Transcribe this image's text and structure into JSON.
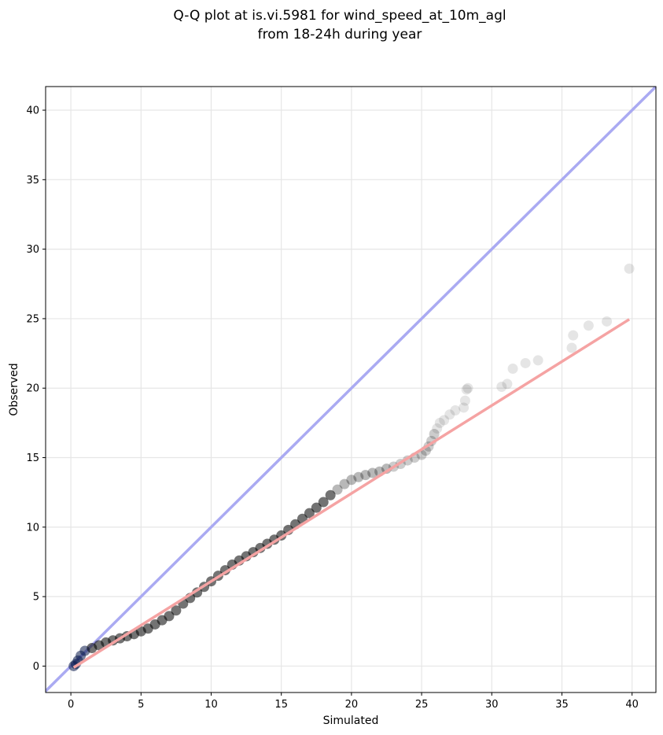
{
  "chart_data": {
    "type": "scatter",
    "title_lines": [
      "Q-Q plot at is.vi.5981 for wind_speed_at_10m_agl",
      "from 18-24h during year"
    ],
    "xlabel": "Simulated",
    "ylabel": "Observed",
    "xlim": [
      -1.8,
      41.7
    ],
    "ylim": [
      -1.9,
      41.7
    ],
    "xticks": [
      0,
      5,
      10,
      15,
      20,
      25,
      30,
      35,
      40
    ],
    "yticks": [
      0,
      5,
      10,
      15,
      20,
      25,
      30,
      35,
      40
    ],
    "grid": true,
    "colors": {
      "identity_line": "#aaaaf2",
      "fit_line": "#f5a3a3",
      "points": "#000000",
      "axes": "#000000",
      "grid": "#e6e6e6"
    },
    "series": [
      {
        "kind": "reference",
        "x": [
          -1.8,
          41.7
        ],
        "y": [
          -1.8,
          41.7
        ]
      },
      {
        "kind": "fit",
        "x": [
          0.2,
          39.8
        ],
        "y": [
          -0.1,
          24.95
        ]
      },
      {
        "kind": "quantiles",
        "x": [
          0.2,
          0.35,
          0.5,
          0.7,
          1.0,
          1.5,
          2.0,
          2.5,
          3.0,
          3.5,
          4.0,
          4.5,
          5.0,
          5.5,
          6.0,
          6.5,
          7.0,
          7.5,
          8.0,
          8.5,
          9.0,
          9.5,
          10.0,
          10.5,
          11.0,
          11.5,
          12.0,
          12.5,
          13.0,
          13.5,
          14.0,
          14.5,
          15.0,
          15.5,
          16.0,
          16.5,
          17.0,
          17.5,
          18.0,
          18.5,
          19.0,
          19.5,
          20.0,
          20.5,
          21.0,
          21.5,
          22.0,
          22.5,
          23.0,
          23.5,
          24.0,
          24.5,
          25.0,
          25.3,
          25.5,
          25.7,
          25.9,
          26.1,
          26.3,
          26.6,
          27.0,
          27.4,
          28.0,
          28.1,
          28.2,
          28.3,
          30.7,
          31.1,
          31.5,
          32.4,
          33.3,
          35.7,
          35.8,
          36.9,
          38.2,
          39.8
        ],
        "y": [
          0.0,
          0.15,
          0.4,
          0.75,
          1.1,
          1.3,
          1.5,
          1.7,
          1.85,
          2.0,
          2.15,
          2.3,
          2.5,
          2.7,
          3.0,
          3.3,
          3.6,
          4.0,
          4.5,
          4.9,
          5.3,
          5.7,
          6.1,
          6.5,
          6.9,
          7.3,
          7.6,
          7.9,
          8.2,
          8.5,
          8.8,
          9.1,
          9.4,
          9.8,
          10.2,
          10.6,
          11.0,
          11.4,
          11.8,
          12.3,
          12.7,
          13.1,
          13.4,
          13.6,
          13.75,
          13.9,
          14.0,
          14.2,
          14.35,
          14.55,
          14.8,
          15.0,
          15.2,
          15.5,
          15.8,
          16.2,
          16.7,
          17.1,
          17.5,
          17.7,
          18.1,
          18.4,
          18.6,
          19.1,
          19.9,
          20.0,
          20.1,
          20.3,
          21.4,
          21.8,
          22.0,
          22.9,
          23.8,
          24.5,
          24.8,
          28.6
        ]
      }
    ]
  }
}
